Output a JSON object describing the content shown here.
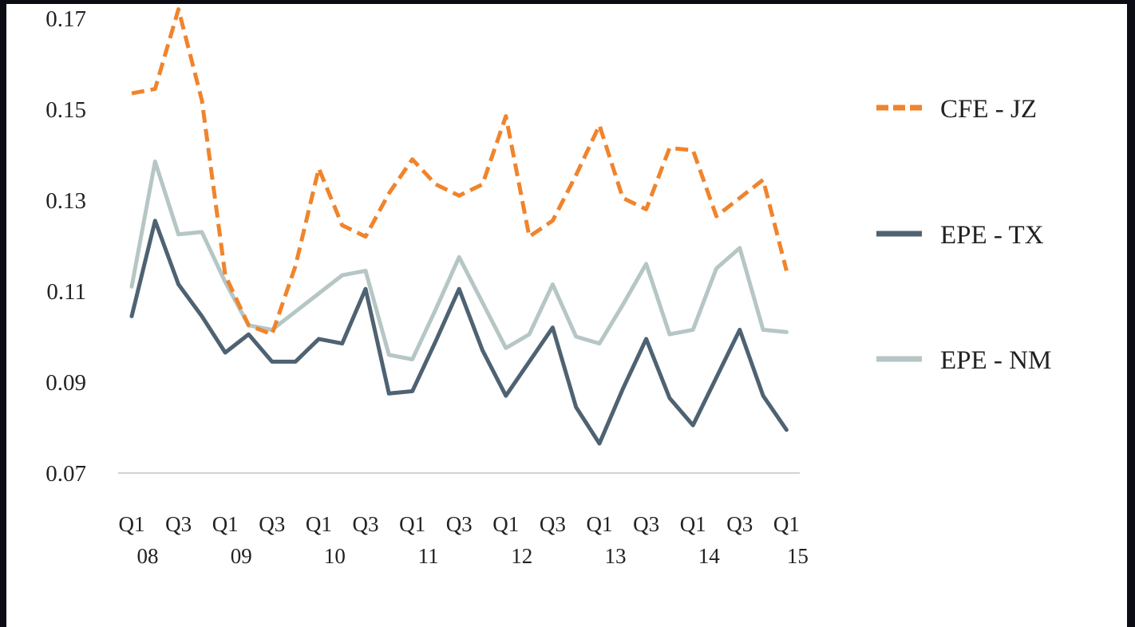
{
  "chart_data": {
    "type": "line",
    "title": "",
    "xlabel": "",
    "ylabel": "",
    "ylim": [
      0.07,
      0.17
    ],
    "yticks": [
      "0.07",
      "0.09",
      "0.11",
      "0.13",
      "0.15",
      "0.17"
    ],
    "grid": false,
    "legend_position": "right",
    "x": [
      "2008 Q1",
      "2008 Q2",
      "2008 Q3",
      "2008 Q4",
      "2009 Q1",
      "2009 Q2",
      "2009 Q3",
      "2009 Q4",
      "2010 Q1",
      "2010 Q2",
      "2010 Q3",
      "2010 Q4",
      "2011 Q1",
      "2011 Q2",
      "2011 Q3",
      "2011 Q4",
      "2012 Q1",
      "2012 Q2",
      "2012 Q3",
      "2012 Q4",
      "2013 Q1",
      "2013 Q2",
      "2013 Q3",
      "2013 Q4",
      "2014 Q1",
      "2014 Q2",
      "2014 Q3",
      "2014 Q4",
      "2015 Q1"
    ],
    "xtick_labels": [
      {
        "index": 0,
        "quarter": "Q1",
        "year": "08"
      },
      {
        "index": 2,
        "quarter": "Q3",
        "year": ""
      },
      {
        "index": 4,
        "quarter": "Q1",
        "year": "09"
      },
      {
        "index": 6,
        "quarter": "Q3",
        "year": ""
      },
      {
        "index": 8,
        "quarter": "Q1",
        "year": "10"
      },
      {
        "index": 10,
        "quarter": "Q3",
        "year": ""
      },
      {
        "index": 12,
        "quarter": "Q1",
        "year": "11"
      },
      {
        "index": 14,
        "quarter": "Q3",
        "year": ""
      },
      {
        "index": 16,
        "quarter": "Q1",
        "year": "12"
      },
      {
        "index": 18,
        "quarter": "Q3",
        "year": ""
      },
      {
        "index": 20,
        "quarter": "Q1",
        "year": "13"
      },
      {
        "index": 22,
        "quarter": "Q3",
        "year": ""
      },
      {
        "index": 24,
        "quarter": "Q1",
        "year": "14"
      },
      {
        "index": 26,
        "quarter": "Q3",
        "year": ""
      },
      {
        "index": 28,
        "quarter": "Q1",
        "year": "15"
      }
    ],
    "series": [
      {
        "name": "CFE - JZ",
        "color": "#f0842c",
        "style": "dashed",
        "values": [
          0.1535,
          0.1545,
          0.172,
          0.152,
          0.1135,
          0.1025,
          0.1005,
          0.1155,
          0.137,
          0.1245,
          0.122,
          0.1315,
          0.139,
          0.1335,
          0.131,
          0.1335,
          0.1485,
          0.122,
          0.1255,
          0.1355,
          0.1465,
          0.1305,
          0.128,
          0.1415,
          0.141,
          0.1265,
          0.1305,
          0.1345,
          0.1145
        ]
      },
      {
        "name": "EPE - TX",
        "color": "#4e6272",
        "style": "solid",
        "values": [
          0.1045,
          0.1255,
          0.1115,
          0.1045,
          0.0965,
          0.1005,
          0.0945,
          0.0945,
          0.0995,
          0.0985,
          0.1105,
          0.0875,
          0.088,
          0.099,
          0.1105,
          0.097,
          0.087,
          0.0945,
          0.102,
          0.0845,
          0.0765,
          0.0885,
          0.0995,
          0.0865,
          0.0805,
          0.091,
          0.1015,
          0.087,
          0.0795
        ]
      },
      {
        "name": "EPE - NM",
        "color": "#b5c6c5",
        "style": "solid",
        "values": [
          0.111,
          0.1385,
          0.1225,
          0.123,
          0.112,
          0.1025,
          0.1015,
          0.1055,
          0.1095,
          0.1135,
          0.1145,
          0.096,
          0.095,
          0.106,
          0.1175,
          0.1075,
          0.0975,
          0.1005,
          0.1115,
          0.1,
          0.0985,
          0.107,
          0.116,
          0.1005,
          0.1015,
          0.115,
          0.1195,
          0.1015,
          0.101
        ]
      }
    ]
  }
}
